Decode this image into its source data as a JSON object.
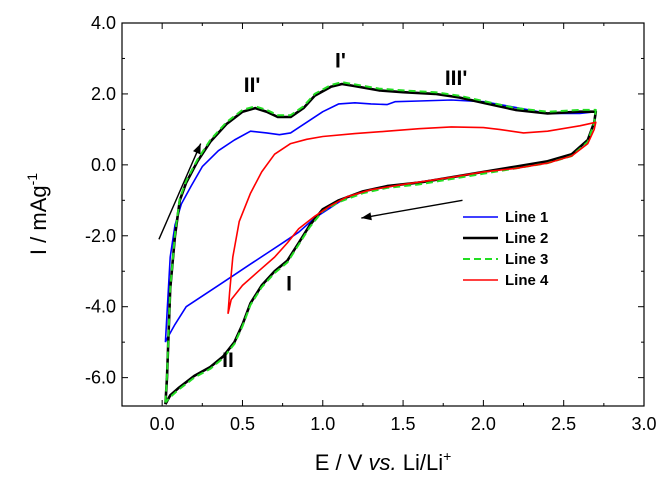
{
  "chart_data": {
    "type": "line",
    "xlabel_parts": [
      "E / V ",
      "vs.",
      " Li/Li",
      "+"
    ],
    "ylabel_parts": [
      "I / mAg",
      "-1"
    ],
    "xlim": [
      -0.25,
      3.0
    ],
    "ylim": [
      -6.8,
      4.0
    ],
    "x_ticks": [
      "0.0",
      "0.5",
      "1.0",
      "1.5",
      "2.0",
      "2.5",
      "3.0"
    ],
    "y_ticks": [
      "-6.0",
      "-4.0",
      "-2.0",
      "0.0",
      "2.0",
      "4.0"
    ],
    "x_tick_values": [
      0.0,
      0.5,
      1.0,
      1.5,
      2.0,
      2.5,
      3.0
    ],
    "y_tick_values": [
      -6.0,
      -4.0,
      -2.0,
      0.0,
      2.0,
      4.0
    ],
    "grid": false,
    "legend_position": "right-middle",
    "series": [
      {
        "name": "Line 1",
        "color": "#0000ff",
        "dash": "solid",
        "width": 1.6,
        "points": [
          [
            0.02,
            -5.0
          ],
          [
            0.03,
            -4.2
          ],
          [
            0.05,
            -2.6
          ],
          [
            0.08,
            -1.7
          ],
          [
            0.12,
            -1.1
          ],
          [
            0.18,
            -0.6
          ],
          [
            0.25,
            -0.05
          ],
          [
            0.35,
            0.4
          ],
          [
            0.45,
            0.7
          ],
          [
            0.55,
            0.95
          ],
          [
            0.65,
            0.9
          ],
          [
            0.73,
            0.85
          ],
          [
            0.8,
            0.9
          ],
          [
            0.9,
            1.2
          ],
          [
            1.0,
            1.5
          ],
          [
            1.1,
            1.72
          ],
          [
            1.2,
            1.75
          ],
          [
            1.3,
            1.72
          ],
          [
            1.4,
            1.7
          ],
          [
            1.45,
            1.78
          ],
          [
            1.6,
            1.8
          ],
          [
            1.8,
            1.83
          ],
          [
            2.0,
            1.78
          ],
          [
            2.2,
            1.62
          ],
          [
            2.4,
            1.45
          ],
          [
            2.6,
            1.45
          ],
          [
            2.7,
            1.5
          ],
          [
            2.69,
            1.2
          ],
          [
            2.65,
            0.7
          ],
          [
            2.55,
            0.3
          ],
          [
            2.4,
            0.1
          ],
          [
            2.2,
            -0.05
          ],
          [
            2.0,
            -0.2
          ],
          [
            1.8,
            -0.35
          ],
          [
            1.5,
            -0.55
          ],
          [
            1.3,
            -0.7
          ],
          [
            1.15,
            -0.9
          ],
          [
            1.05,
            -1.2
          ],
          [
            0.95,
            -1.5
          ],
          [
            0.85,
            -1.9
          ],
          [
            0.75,
            -2.2
          ],
          [
            0.65,
            -2.5
          ],
          [
            0.55,
            -2.8
          ],
          [
            0.45,
            -3.1
          ],
          [
            0.35,
            -3.4
          ],
          [
            0.25,
            -3.7
          ],
          [
            0.15,
            -4.0
          ],
          [
            0.08,
            -4.5
          ],
          [
            0.03,
            -4.9
          ],
          [
            0.02,
            -5.0
          ]
        ]
      },
      {
        "name": "Line 2",
        "color": "#000000",
        "dash": "solid",
        "width": 2.6,
        "points": [
          [
            0.02,
            -6.75
          ],
          [
            0.03,
            -6.0
          ],
          [
            0.05,
            -3.5
          ],
          [
            0.08,
            -2.0
          ],
          [
            0.11,
            -1.0
          ],
          [
            0.15,
            -0.5
          ],
          [
            0.22,
            0.1
          ],
          [
            0.3,
            0.65
          ],
          [
            0.4,
            1.15
          ],
          [
            0.5,
            1.5
          ],
          [
            0.58,
            1.6
          ],
          [
            0.65,
            1.5
          ],
          [
            0.72,
            1.35
          ],
          [
            0.8,
            1.35
          ],
          [
            0.88,
            1.6
          ],
          [
            0.95,
            1.95
          ],
          [
            1.05,
            2.2
          ],
          [
            1.12,
            2.28
          ],
          [
            1.2,
            2.22
          ],
          [
            1.35,
            2.1
          ],
          [
            1.5,
            2.05
          ],
          [
            1.7,
            2.0
          ],
          [
            1.85,
            1.9
          ],
          [
            2.0,
            1.75
          ],
          [
            2.2,
            1.55
          ],
          [
            2.4,
            1.45
          ],
          [
            2.6,
            1.5
          ],
          [
            2.7,
            1.5
          ],
          [
            2.69,
            1.2
          ],
          [
            2.65,
            0.7
          ],
          [
            2.55,
            0.3
          ],
          [
            2.4,
            0.1
          ],
          [
            2.2,
            -0.05
          ],
          [
            2.0,
            -0.2
          ],
          [
            1.8,
            -0.35
          ],
          [
            1.6,
            -0.5
          ],
          [
            1.4,
            -0.6
          ],
          [
            1.25,
            -0.75
          ],
          [
            1.1,
            -1.0
          ],
          [
            1.0,
            -1.25
          ],
          [
            0.92,
            -1.7
          ],
          [
            0.85,
            -2.2
          ],
          [
            0.78,
            -2.7
          ],
          [
            0.7,
            -3.0
          ],
          [
            0.62,
            -3.4
          ],
          [
            0.55,
            -3.9
          ],
          [
            0.5,
            -4.5
          ],
          [
            0.45,
            -5.0
          ],
          [
            0.38,
            -5.4
          ],
          [
            0.3,
            -5.7
          ],
          [
            0.2,
            -5.95
          ],
          [
            0.1,
            -6.3
          ],
          [
            0.05,
            -6.5
          ],
          [
            0.02,
            -6.75
          ]
        ]
      },
      {
        "name": "Line 3",
        "color": "#22dd22",
        "dash": "dashed",
        "width": 2.0,
        "points": [
          [
            0.02,
            -6.7
          ],
          [
            0.03,
            -5.95
          ],
          [
            0.05,
            -3.5
          ],
          [
            0.08,
            -1.95
          ],
          [
            0.11,
            -0.95
          ],
          [
            0.15,
            -0.45
          ],
          [
            0.22,
            0.15
          ],
          [
            0.3,
            0.7
          ],
          [
            0.4,
            1.2
          ],
          [
            0.5,
            1.55
          ],
          [
            0.58,
            1.65
          ],
          [
            0.65,
            1.55
          ],
          [
            0.72,
            1.4
          ],
          [
            0.8,
            1.4
          ],
          [
            0.88,
            1.65
          ],
          [
            0.95,
            2.0
          ],
          [
            1.05,
            2.25
          ],
          [
            1.12,
            2.33
          ],
          [
            1.2,
            2.27
          ],
          [
            1.35,
            2.15
          ],
          [
            1.5,
            2.1
          ],
          [
            1.7,
            2.05
          ],
          [
            1.85,
            1.95
          ],
          [
            2.0,
            1.8
          ],
          [
            2.2,
            1.6
          ],
          [
            2.4,
            1.5
          ],
          [
            2.6,
            1.55
          ],
          [
            2.7,
            1.55
          ],
          [
            2.69,
            1.2
          ],
          [
            2.65,
            0.65
          ],
          [
            2.55,
            0.25
          ],
          [
            2.4,
            0.05
          ],
          [
            2.2,
            -0.1
          ],
          [
            2.0,
            -0.25
          ],
          [
            1.8,
            -0.4
          ],
          [
            1.6,
            -0.55
          ],
          [
            1.4,
            -0.65
          ],
          [
            1.25,
            -0.8
          ],
          [
            1.1,
            -1.05
          ],
          [
            1.0,
            -1.3
          ],
          [
            0.92,
            -1.75
          ],
          [
            0.85,
            -2.25
          ],
          [
            0.78,
            -2.75
          ],
          [
            0.7,
            -3.05
          ],
          [
            0.62,
            -3.45
          ],
          [
            0.55,
            -3.95
          ],
          [
            0.5,
            -4.55
          ],
          [
            0.45,
            -5.05
          ],
          [
            0.38,
            -5.45
          ],
          [
            0.3,
            -5.75
          ],
          [
            0.2,
            -6.0
          ],
          [
            0.1,
            -6.35
          ],
          [
            0.05,
            -6.55
          ],
          [
            0.02,
            -6.7
          ]
        ]
      },
      {
        "name": "Line 4",
        "color": "#ff0000",
        "dash": "solid",
        "width": 1.6,
        "points": [
          [
            0.41,
            -4.2
          ],
          [
            0.42,
            -3.6
          ],
          [
            0.44,
            -2.6
          ],
          [
            0.48,
            -1.6
          ],
          [
            0.55,
            -0.8
          ],
          [
            0.62,
            -0.2
          ],
          [
            0.7,
            0.3
          ],
          [
            0.8,
            0.6
          ],
          [
            0.9,
            0.72
          ],
          [
            1.0,
            0.8
          ],
          [
            1.2,
            0.88
          ],
          [
            1.4,
            0.95
          ],
          [
            1.6,
            1.02
          ],
          [
            1.8,
            1.07
          ],
          [
            2.0,
            1.05
          ],
          [
            2.1,
            1.0
          ],
          [
            2.25,
            0.9
          ],
          [
            2.4,
            0.95
          ],
          [
            2.6,
            1.1
          ],
          [
            2.7,
            1.2
          ],
          [
            2.69,
            1.0
          ],
          [
            2.65,
            0.6
          ],
          [
            2.55,
            0.25
          ],
          [
            2.4,
            0.05
          ],
          [
            2.2,
            -0.1
          ],
          [
            2.0,
            -0.2
          ],
          [
            1.8,
            -0.35
          ],
          [
            1.5,
            -0.55
          ],
          [
            1.3,
            -0.7
          ],
          [
            1.15,
            -0.9
          ],
          [
            1.05,
            -1.15
          ],
          [
            0.95,
            -1.45
          ],
          [
            0.85,
            -1.8
          ],
          [
            0.78,
            -2.2
          ],
          [
            0.7,
            -2.6
          ],
          [
            0.6,
            -3.0
          ],
          [
            0.5,
            -3.4
          ],
          [
            0.43,
            -3.8
          ],
          [
            0.41,
            -4.2
          ]
        ]
      }
    ],
    "annotations": [
      {
        "text": "II'",
        "x": 0.56,
        "y": 2.05
      },
      {
        "text": "I'",
        "x": 1.11,
        "y": 2.75
      },
      {
        "text": "III'",
        "x": 1.83,
        "y": 2.25
      },
      {
        "text": "I",
        "x": 0.79,
        "y": -3.55
      },
      {
        "text": "II",
        "x": 0.41,
        "y": -5.7
      }
    ],
    "arrows": [
      {
        "from": [
          -0.02,
          -2.1
        ],
        "to": [
          0.24,
          0.6
        ]
      },
      {
        "from": [
          1.87,
          -1.0
        ],
        "to": [
          1.24,
          -1.5
        ]
      }
    ]
  }
}
